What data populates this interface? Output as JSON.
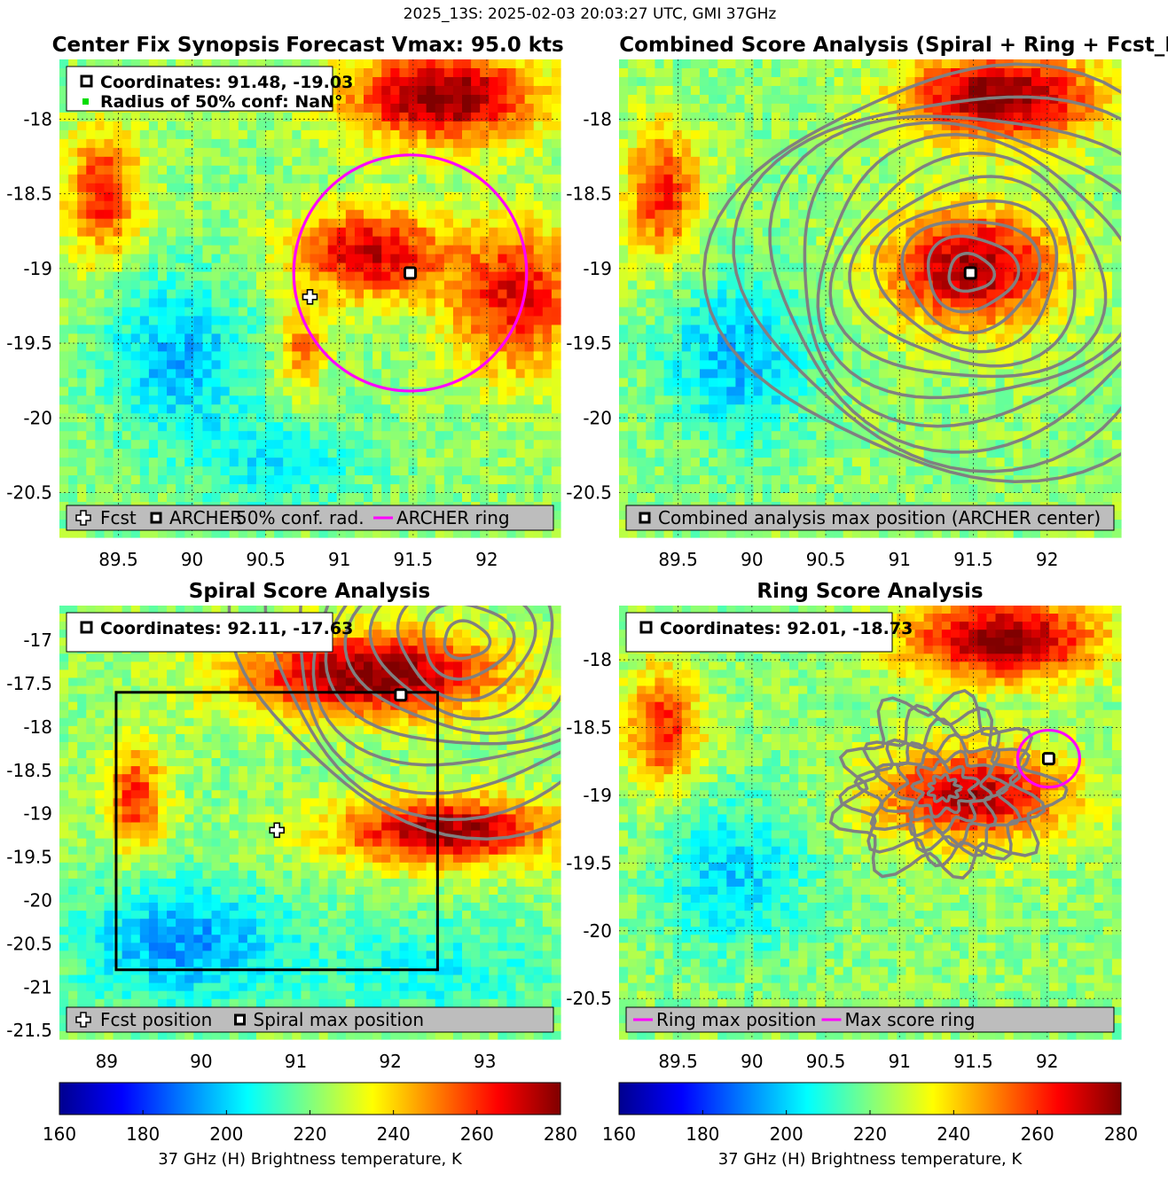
{
  "figure_title": "2025_13S: 2025-02-03 20:03:27 UTC, GMI 37GHz",
  "chart_data": [
    {
      "type": "heatmap",
      "id": "center_fix",
      "title_left": "Center Fix Synopsis",
      "title_right": "Forecast Vmax: 95.0 kts",
      "xlim": [
        89.1,
        92.5
      ],
      "ylim": [
        -20.8,
        -17.6
      ],
      "xticks": [
        89.5,
        90,
        90.5,
        91,
        91.5,
        92
      ],
      "yticks": [
        -18,
        -18.5,
        -19,
        -19.5,
        -20,
        -20.5
      ],
      "grid": true,
      "info": [
        "Coordinates: 91.48, -19.03",
        "Radius of 50% conf: NaN°"
      ],
      "markers": [
        {
          "kind": "cross",
          "label": "Fcst",
          "x": 90.8,
          "y": -19.19
        },
        {
          "kind": "square",
          "label": "ARCHER",
          "x": 91.48,
          "y": -19.03
        }
      ],
      "ring": {
        "x": 91.48,
        "y": -19.03,
        "radius_deg": 0.79
      },
      "legend": [
        "Fcst",
        "ARCHER",
        "50% conf. rad.",
        "ARCHER ring"
      ],
      "warm_features": [
        {
          "x": 91.7,
          "y": -17.85,
          "rx": 0.65,
          "ry": 0.3,
          "k": 60
        },
        {
          "x": 91.2,
          "y": -18.9,
          "rx": 0.5,
          "ry": 0.3,
          "k": 50
        },
        {
          "x": 92.2,
          "y": -19.2,
          "rx": 0.45,
          "ry": 0.5,
          "k": 45
        },
        {
          "x": 89.4,
          "y": -18.5,
          "rx": 0.25,
          "ry": 0.45,
          "k": 40
        },
        {
          "x": 90.75,
          "y": -19.55,
          "rx": 0.15,
          "ry": 0.3,
          "k": 30
        }
      ],
      "cold_features": [
        {
          "x": 89.9,
          "y": -19.6,
          "rx": 0.5,
          "ry": 0.55,
          "k": 25
        },
        {
          "x": 90.6,
          "y": -20.3,
          "rx": 0.6,
          "ry": 0.3,
          "k": 18
        }
      ]
    },
    {
      "type": "heatmap",
      "id": "combined",
      "title": "Combined Score Analysis (Spiral + Ring + Fcst_Pe",
      "xlim": [
        89.1,
        92.5
      ],
      "ylim": [
        -20.8,
        -17.6
      ],
      "xticks": [
        89.5,
        90,
        90.5,
        91,
        91.5,
        92
      ],
      "yticks": [
        -18,
        -18.5,
        -19,
        -19.5,
        -20,
        -20.5
      ],
      "grid": true,
      "markers": [
        {
          "kind": "square",
          "label": "Combined analysis max position (ARCHER center)",
          "x": 91.48,
          "y": -19.03
        }
      ],
      "legend": [
        "Combined analysis max position (ARCHER center)"
      ],
      "contours": {
        "cx": 91.48,
        "cy": -19.03,
        "levels": 11
      },
      "warm_features": [
        {
          "x": 91.7,
          "y": -17.85,
          "rx": 0.65,
          "ry": 0.3,
          "k": 60
        },
        {
          "x": 91.5,
          "y": -19.0,
          "rx": 0.6,
          "ry": 0.4,
          "k": 55
        },
        {
          "x": 89.4,
          "y": -18.5,
          "rx": 0.25,
          "ry": 0.45,
          "k": 40
        }
      ],
      "cold_features": [
        {
          "x": 89.9,
          "y": -19.6,
          "rx": 0.5,
          "ry": 0.55,
          "k": 25
        }
      ]
    },
    {
      "type": "heatmap",
      "id": "spiral",
      "title": "Spiral Score Analysis",
      "xlim": [
        88.5,
        93.8
      ],
      "ylim": [
        -21.6,
        -16.6
      ],
      "xticks": [
        89,
        90,
        91,
        92,
        93
      ],
      "yticks": [
        -17,
        -17.5,
        -18,
        -18.5,
        -19,
        -19.5,
        -20,
        -20.5,
        -21,
        -21.5
      ],
      "grid": false,
      "info": [
        "Coordinates: 92.11, -17.63"
      ],
      "markers": [
        {
          "kind": "cross",
          "label": "Fcst position",
          "x": 90.8,
          "y": -19.19
        },
        {
          "kind": "square",
          "label": "Spiral max position",
          "x": 92.11,
          "y": -17.63
        }
      ],
      "box": {
        "x0": 89.1,
        "x1": 92.5,
        "y0": -20.8,
        "y1": -17.6
      },
      "legend": [
        "Fcst position",
        "Spiral max position"
      ],
      "contours": {
        "cx": 92.8,
        "cy": -17.0,
        "levels": 10
      },
      "warm_features": [
        {
          "x": 91.8,
          "y": -17.4,
          "rx": 1.4,
          "ry": 0.5,
          "k": 60
        },
        {
          "x": 92.6,
          "y": -19.2,
          "rx": 1.2,
          "ry": 0.4,
          "k": 55
        },
        {
          "x": 89.3,
          "y": -18.8,
          "rx": 0.3,
          "ry": 0.6,
          "k": 40
        }
      ],
      "cold_features": [
        {
          "x": 89.8,
          "y": -20.5,
          "rx": 1.2,
          "ry": 0.7,
          "k": 28
        },
        {
          "x": 92.5,
          "y": -20.8,
          "rx": 1.2,
          "ry": 0.6,
          "k": 15
        }
      ]
    },
    {
      "type": "heatmap",
      "id": "ring",
      "title": "Ring Score Analysis",
      "xlim": [
        89.1,
        92.5
      ],
      "ylim": [
        -20.8,
        -17.6
      ],
      "xticks": [
        89.5,
        90,
        90.5,
        91,
        91.5,
        92
      ],
      "yticks": [
        -18,
        -18.5,
        -19,
        -19.5,
        -20,
        -20.5
      ],
      "grid": true,
      "info": [
        "Coordinates: 92.01, -18.73"
      ],
      "markers": [
        {
          "kind": "square",
          "label": "Ring max position",
          "x": 92.01,
          "y": -18.73
        }
      ],
      "ring": {
        "x": 92.01,
        "y": -18.73,
        "radius_deg": 0.21
      },
      "legend": [
        "Ring max position",
        "Max score ring"
      ],
      "contours": {
        "cx": 91.3,
        "cy": -18.95,
        "levels": 7
      },
      "warm_features": [
        {
          "x": 91.7,
          "y": -17.85,
          "rx": 0.65,
          "ry": 0.3,
          "k": 60
        },
        {
          "x": 91.5,
          "y": -19.0,
          "rx": 0.65,
          "ry": 0.35,
          "k": 52
        },
        {
          "x": 89.4,
          "y": -18.5,
          "rx": 0.25,
          "ry": 0.45,
          "k": 40
        }
      ],
      "cold_features": [
        {
          "x": 89.9,
          "y": -19.6,
          "rx": 0.5,
          "ry": 0.55,
          "k": 22
        }
      ]
    }
  ],
  "colorbar": {
    "min": 160,
    "max": 280,
    "ticks": [
      160,
      180,
      200,
      220,
      240,
      260,
      280
    ],
    "label": "37 GHz (H) Brightness temperature, K"
  }
}
